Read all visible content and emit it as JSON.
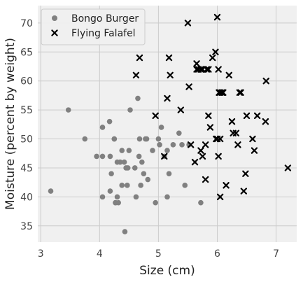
{
  "chart_data": {
    "type": "scatter",
    "title": "",
    "xlabel": "Size (cm)",
    "ylabel": "Moisture (percent by weight)",
    "xlim": [
      2.95,
      7.35
    ],
    "ylim": [
      32.2,
      73.0
    ],
    "xticks": [
      3,
      4,
      5,
      6,
      7
    ],
    "yticks": [
      35,
      40,
      45,
      50,
      55,
      60,
      65,
      70
    ],
    "grid": true,
    "legend_position": "top-left",
    "colors": {
      "background": "#f0f0f0",
      "grid": "#cbcbcb",
      "bongo": "#808080",
      "falafel": "#000000"
    },
    "series": [
      {
        "name": "Bongo Burger",
        "marker": "circle",
        "x": [
          3.17,
          3.47,
          3.75,
          3.95,
          4.05,
          4.05,
          4.05,
          4.17,
          4.18,
          4.18,
          4.2,
          4.25,
          4.25,
          4.27,
          4.27,
          4.3,
          4.3,
          4.32,
          4.35,
          4.38,
          4.38,
          4.42,
          4.43,
          4.45,
          4.47,
          4.48,
          4.5,
          4.52,
          4.6,
          4.62,
          4.65,
          4.67,
          4.68,
          4.7,
          4.72,
          4.75,
          4.78,
          4.8,
          4.82,
          4.9,
          4.95,
          5.0,
          5.02,
          5.05,
          5.1,
          5.15,
          5.15,
          5.18,
          5.25,
          5.35,
          5.4,
          5.45,
          5.52,
          5.72
        ],
        "y": [
          41,
          55,
          50,
          47,
          52,
          47,
          40,
          53,
          47,
          41,
          44,
          50,
          50,
          39,
          39,
          40,
          46,
          39,
          46,
          48,
          42,
          46,
          34,
          45,
          42,
          45,
          48,
          55,
          45,
          40,
          57,
          47,
          50,
          42,
          46,
          44,
          50,
          50,
          43,
          48,
          39,
          50,
          49,
          52,
          47,
          48,
          40,
          44,
          49,
          51,
          49,
          42,
          49,
          39
        ]
      },
      {
        "name": "Flying Falafel",
        "marker": "x",
        "x": [
          4.62,
          4.68,
          4.95,
          5.1,
          5.15,
          5.18,
          5.2,
          5.38,
          5.5,
          5.52,
          5.55,
          5.62,
          5.65,
          5.65,
          5.68,
          5.72,
          5.75,
          5.75,
          5.8,
          5.8,
          5.82,
          5.85,
          5.88,
          5.92,
          5.97,
          6.0,
          6.0,
          6.02,
          6.02,
          6.03,
          6.05,
          6.05,
          6.08,
          6.1,
          6.15,
          6.2,
          6.25,
          6.27,
          6.32,
          6.35,
          6.38,
          6.4,
          6.45,
          6.48,
          6.5,
          6.6,
          6.63,
          6.68,
          6.82,
          6.83,
          7.2,
          5.98,
          5.85,
          5.72,
          6.05
        ],
        "y": [
          61,
          64,
          54,
          47,
          57,
          64,
          61,
          55,
          70,
          59,
          49,
          46,
          62,
          63,
          62,
          48,
          62,
          47,
          49,
          43,
          62,
          54,
          52,
          64,
          65,
          71,
          50,
          62,
          47,
          58,
          40,
          50,
          58,
          58,
          42,
          61,
          53,
          51,
          51,
          49,
          58,
          58,
          41,
          44,
          54,
          50,
          48,
          54,
          53,
          60,
          45,
          50,
          62,
          62,
          58
        ]
      }
    ]
  }
}
